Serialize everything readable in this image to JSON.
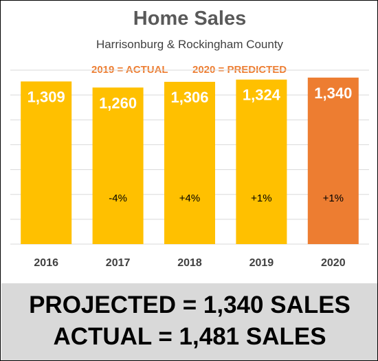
{
  "chart_data": {
    "type": "bar",
    "title": "Home Sales",
    "subtitle": "Harrisonburg & Rockingham County",
    "legend": {
      "actual": "2019 = ACTUAL",
      "predicted": "2020 = PREDICTED"
    },
    "categories": [
      "2016",
      "2017",
      "2018",
      "2019",
      "2020"
    ],
    "values": [
      1309,
      1260,
      1306,
      1324,
      1340
    ],
    "value_labels": [
      "1,309",
      "1,260",
      "1,306",
      "1,324",
      "1,340"
    ],
    "change_labels": [
      "",
      "-4%",
      "+4%",
      "+1%",
      "+1%"
    ],
    "ylim": [
      0,
      1400
    ],
    "grid": true,
    "colors": {
      "actual": "#ffc000",
      "predicted": "#ed7d31",
      "grid": "#d9d9d9",
      "value_label": "#ffffff",
      "axis_label": "#404040"
    },
    "bar_kinds": [
      "actual",
      "actual",
      "actual",
      "actual",
      "predicted"
    ]
  },
  "footer": {
    "line1": "PROJECTED = 1,340 SALES",
    "line2": "ACTUAL = 1,481 SALES"
  }
}
